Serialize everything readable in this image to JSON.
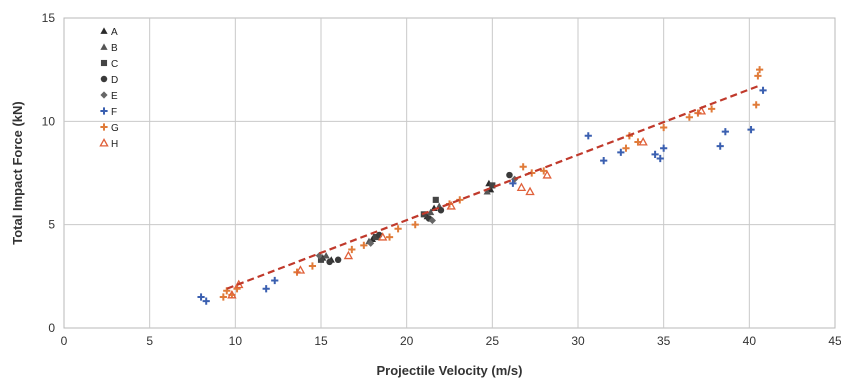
{
  "chart_data": {
    "type": "scatter",
    "title": "",
    "xlabel": "Projectile Velocity (m/s)",
    "ylabel": "Total Impact Force (kN)",
    "xlim": [
      0,
      45
    ],
    "ylim": [
      0,
      15
    ],
    "xticks": [
      "0",
      "5",
      "10",
      "15",
      "20",
      "25",
      "30",
      "35",
      "40",
      "45"
    ],
    "yticks": [
      "0",
      "5",
      "10",
      "15"
    ],
    "grid": true,
    "legend_position": "top-left",
    "trendline": {
      "type": "linear",
      "x": [
        9.5,
        40.5
      ],
      "y": [
        1.9,
        11.7
      ],
      "color": "#c0392b",
      "style": "dashed"
    },
    "series": [
      {
        "name": "A",
        "marker": "triangle",
        "color": "#2b2b2b",
        "points": [
          [
            15.1,
            3.4
          ],
          [
            15.6,
            3.3
          ],
          [
            18.0,
            4.3
          ],
          [
            21.2,
            5.4
          ],
          [
            21.6,
            5.8
          ],
          [
            24.8,
            7.0
          ],
          [
            24.9,
            6.7
          ]
        ]
      },
      {
        "name": "B",
        "marker": "triangle",
        "color": "#555555",
        "points": [
          [
            15.3,
            3.5
          ],
          [
            17.8,
            4.2
          ],
          [
            21.4,
            5.6
          ],
          [
            21.9,
            5.9
          ],
          [
            24.7,
            6.6
          ]
        ]
      },
      {
        "name": "C",
        "marker": "square",
        "color": "#444444",
        "points": [
          [
            15.0,
            3.3
          ],
          [
            18.2,
            4.4
          ],
          [
            21.0,
            5.5
          ],
          [
            21.7,
            6.2
          ],
          [
            25.0,
            6.9
          ]
        ]
      },
      {
        "name": "D",
        "marker": "circle",
        "color": "#3a3a3a",
        "points": [
          [
            15.5,
            3.2
          ],
          [
            16.0,
            3.3
          ],
          [
            18.4,
            4.5
          ],
          [
            21.3,
            5.3
          ],
          [
            22.0,
            5.7
          ],
          [
            26.0,
            7.4
          ]
        ]
      },
      {
        "name": "E",
        "marker": "diamond",
        "color": "#666666",
        "points": [
          [
            14.9,
            3.5
          ],
          [
            17.9,
            4.1
          ],
          [
            21.5,
            5.2
          ],
          [
            26.3,
            7.2
          ]
        ]
      },
      {
        "name": "F",
        "marker": "plus",
        "color": "#3a5fb0",
        "points": [
          [
            8.0,
            1.5
          ],
          [
            8.3,
            1.3
          ],
          [
            11.8,
            1.9
          ],
          [
            12.3,
            2.3
          ],
          [
            26.2,
            7.0
          ],
          [
            30.6,
            9.3
          ],
          [
            31.5,
            8.1
          ],
          [
            32.5,
            8.5
          ],
          [
            34.5,
            8.4
          ],
          [
            34.8,
            8.2
          ],
          [
            35.0,
            8.7
          ],
          [
            38.3,
            8.8
          ],
          [
            38.6,
            9.5
          ],
          [
            40.1,
            9.6
          ],
          [
            40.8,
            11.5
          ]
        ]
      },
      {
        "name": "G",
        "marker": "plus",
        "color": "#e07b39",
        "points": [
          [
            9.3,
            1.5
          ],
          [
            9.5,
            1.8
          ],
          [
            9.8,
            1.6
          ],
          [
            10.1,
            1.9
          ],
          [
            13.6,
            2.7
          ],
          [
            14.5,
            3.0
          ],
          [
            16.8,
            3.8
          ],
          [
            17.5,
            4.0
          ],
          [
            19.0,
            4.4
          ],
          [
            19.5,
            4.8
          ],
          [
            20.5,
            5.0
          ],
          [
            22.5,
            6.0
          ],
          [
            23.1,
            6.2
          ],
          [
            26.8,
            7.8
          ],
          [
            27.3,
            7.5
          ],
          [
            28.0,
            7.6
          ],
          [
            32.8,
            8.7
          ],
          [
            33.0,
            9.3
          ],
          [
            33.5,
            9.0
          ],
          [
            35.0,
            9.7
          ],
          [
            36.5,
            10.2
          ],
          [
            37.0,
            10.4
          ],
          [
            37.8,
            10.6
          ],
          [
            40.4,
            10.8
          ],
          [
            40.5,
            12.2
          ],
          [
            40.6,
            12.5
          ]
        ]
      },
      {
        "name": "H",
        "marker": "triangle-open",
        "color": "#e0603a",
        "points": [
          [
            9.8,
            1.6
          ],
          [
            10.2,
            2.1
          ],
          [
            13.8,
            2.8
          ],
          [
            16.6,
            3.5
          ],
          [
            18.6,
            4.4
          ],
          [
            22.6,
            5.9
          ],
          [
            26.7,
            6.8
          ],
          [
            27.2,
            6.6
          ],
          [
            28.2,
            7.4
          ],
          [
            33.8,
            9.0
          ],
          [
            37.2,
            10.5
          ]
        ]
      }
    ]
  }
}
